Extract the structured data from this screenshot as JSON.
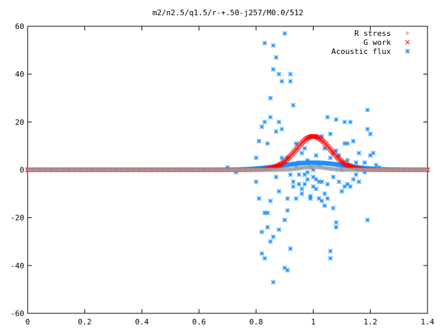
{
  "chart_data": {
    "type": "scatter",
    "title": "m2/n2.5/q1.5/r-+.50-j257/M0.0/512",
    "xlabel": "",
    "ylabel": "",
    "xlim": [
      0,
      1.4
    ],
    "ylim": [
      -60,
      60
    ],
    "x_ticks": [
      "0",
      "0.2",
      "0.4",
      "0.6",
      "0.8",
      "1",
      "1.2",
      "1.4"
    ],
    "y_ticks": [
      "60",
      "40",
      "20",
      "0",
      "-20",
      "-40",
      "-60"
    ],
    "x_tick_values": [
      0,
      0.2,
      0.4,
      0.6,
      0.8,
      1.0,
      1.2,
      1.4
    ],
    "y_tick_values": [
      60,
      40,
      20,
      0,
      -20,
      -40,
      -60
    ],
    "grid": false,
    "legend_position": "top-right",
    "series": [
      {
        "name": "R stress",
        "marker": "plus",
        "color": "#a0a0a0",
        "model": {
          "kind": "gaussian",
          "center": 1.0,
          "amplitude": 1.2,
          "width": 0.06,
          "x_start": 0.0,
          "x_end": 1.4,
          "count": 512
        }
      },
      {
        "name": "G work",
        "marker": "cross",
        "color": "#ff0000",
        "model": {
          "kind": "gaussian",
          "center": 1.0,
          "amplitude": 14.0,
          "width": 0.085,
          "x_start": 0.0,
          "x_end": 1.4,
          "count": 512
        }
      },
      {
        "name": "Acoustic flux",
        "marker": "star",
        "color": "#1e90ff",
        "baseline": {
          "kind": "gaussian",
          "center": 1.0,
          "amplitude": 3.0,
          "width": 0.15,
          "x_start": 0.0,
          "x_end": 1.4,
          "count": 512
        },
        "points": [
          [
            0.7,
            1
          ],
          [
            0.72,
            0
          ],
          [
            0.73,
            -1
          ],
          [
            0.8,
            5
          ],
          [
            0.8,
            -5
          ],
          [
            0.81,
            12
          ],
          [
            0.81,
            -12
          ],
          [
            0.82,
            18
          ],
          [
            0.82,
            -26
          ],
          [
            0.82,
            -35
          ],
          [
            0.83,
            53
          ],
          [
            0.83,
            20
          ],
          [
            0.83,
            -18
          ],
          [
            0.83,
            -37
          ],
          [
            0.84,
            11
          ],
          [
            0.84,
            -18
          ],
          [
            0.84,
            -24
          ],
          [
            0.85,
            30
          ],
          [
            0.85,
            22
          ],
          [
            0.85,
            -30
          ],
          [
            0.85,
            -13
          ],
          [
            0.86,
            52
          ],
          [
            0.86,
            42
          ],
          [
            0.86,
            -47
          ],
          [
            0.86,
            -28
          ],
          [
            0.87,
            47
          ],
          [
            0.87,
            16
          ],
          [
            0.87,
            -3
          ],
          [
            0.88,
            40
          ],
          [
            0.88,
            20
          ],
          [
            0.88,
            -9
          ],
          [
            0.88,
            -25
          ],
          [
            0.89,
            37
          ],
          [
            0.89,
            17
          ],
          [
            0.89,
            5
          ],
          [
            0.9,
            57
          ],
          [
            0.9,
            3
          ],
          [
            0.9,
            -21
          ],
          [
            0.9,
            -41
          ],
          [
            0.91,
            5
          ],
          [
            0.91,
            -12
          ],
          [
            0.91,
            -17
          ],
          [
            0.91,
            -42
          ],
          [
            0.92,
            40
          ],
          [
            0.92,
            37
          ],
          [
            0.92,
            -2
          ],
          [
            0.92,
            -33
          ],
          [
            0.93,
            27
          ],
          [
            0.93,
            -5
          ],
          [
            0.93,
            -7
          ],
          [
            0.94,
            11
          ],
          [
            0.94,
            -12
          ],
          [
            0.94,
            1
          ],
          [
            0.95,
            -2
          ],
          [
            0.95,
            -6
          ],
          [
            0.95,
            3
          ],
          [
            0.96,
            7
          ],
          [
            0.96,
            -8
          ],
          [
            0.96,
            -10
          ],
          [
            0.97,
            9
          ],
          [
            0.97,
            -2
          ],
          [
            0.97,
            -6
          ],
          [
            0.98,
            4
          ],
          [
            0.98,
            -1
          ],
          [
            0.98,
            -4
          ],
          [
            0.99,
            1
          ],
          [
            0.99,
            -12
          ],
          [
            0.99,
            -11
          ],
          [
            1.0,
            0
          ],
          [
            1.0,
            -7
          ],
          [
            1.0,
            -3
          ],
          [
            1.01,
            6
          ],
          [
            1.01,
            -4
          ],
          [
            1.01,
            -8
          ],
          [
            1.02,
            -12
          ],
          [
            1.02,
            2
          ],
          [
            1.02,
            -5
          ],
          [
            1.03,
            14
          ],
          [
            1.03,
            -13
          ],
          [
            1.03,
            -5
          ],
          [
            1.04,
            9
          ],
          [
            1.04,
            -10
          ],
          [
            1.04,
            -15
          ],
          [
            1.05,
            22
          ],
          [
            1.05,
            -6
          ],
          [
            1.05,
            -12
          ],
          [
            1.06,
            15
          ],
          [
            1.06,
            5
          ],
          [
            1.06,
            -37
          ],
          [
            1.06,
            -34
          ],
          [
            1.07,
            7
          ],
          [
            1.07,
            -3
          ],
          [
            1.07,
            -16
          ],
          [
            1.08,
            21
          ],
          [
            1.08,
            8
          ],
          [
            1.08,
            -24
          ],
          [
            1.08,
            -22
          ],
          [
            1.09,
            6
          ],
          [
            1.09,
            -5
          ],
          [
            1.1,
            0
          ],
          [
            1.1,
            3
          ],
          [
            1.1,
            -9
          ],
          [
            1.11,
            20
          ],
          [
            1.11,
            11
          ],
          [
            1.11,
            -7
          ],
          [
            1.12,
            11
          ],
          [
            1.12,
            4
          ],
          [
            1.12,
            -6
          ],
          [
            1.13,
            20
          ],
          [
            1.13,
            2
          ],
          [
            1.13,
            -7
          ],
          [
            1.14,
            12
          ],
          [
            1.14,
            1
          ],
          [
            1.14,
            -4
          ],
          [
            1.15,
            3
          ],
          [
            1.15,
            -2
          ],
          [
            1.16,
            7
          ],
          [
            1.16,
            0
          ],
          [
            1.16,
            -5
          ],
          [
            1.18,
            3
          ],
          [
            1.18,
            -1
          ],
          [
            1.19,
            25
          ],
          [
            1.19,
            17
          ],
          [
            1.19,
            -21
          ],
          [
            1.2,
            15
          ],
          [
            1.2,
            6
          ],
          [
            1.21,
            7
          ],
          [
            1.22,
            2
          ],
          [
            1.23,
            1
          ]
        ]
      }
    ]
  }
}
